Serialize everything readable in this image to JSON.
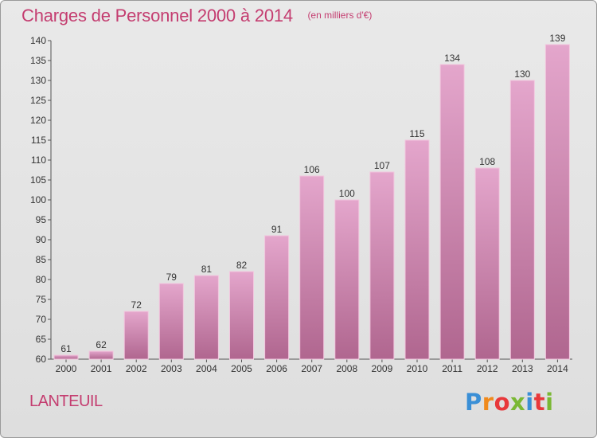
{
  "header": {
    "title": "Charges de Personnel 2000 à 2014",
    "subtitle": "(en milliers d'€)"
  },
  "footer": {
    "commune": "LANTEUIL",
    "brand": "Proxiti",
    "brand_colors": [
      "#3a8fd6",
      "#f08a1c",
      "#e8383b",
      "#7ab833",
      "#3a8fd6",
      "#e8383b",
      "#7ab833"
    ]
  },
  "colors": {
    "accent": "#c43d70",
    "bar_top": "#e4a6cc",
    "bar_bottom": "#b0668f",
    "background": "#e3e3e3"
  },
  "chart_data": {
    "type": "bar",
    "categories": [
      "2000",
      "2001",
      "2002",
      "2003",
      "2004",
      "2005",
      "2006",
      "2007",
      "2008",
      "2009",
      "2010",
      "2011",
      "2012",
      "2013",
      "2014"
    ],
    "values": [
      61,
      62,
      72,
      79,
      81,
      82,
      91,
      106,
      100,
      107,
      115,
      134,
      108,
      130,
      139
    ],
    "ylim": [
      60,
      140
    ],
    "yticks": [
      60,
      65,
      70,
      75,
      80,
      85,
      90,
      95,
      100,
      105,
      110,
      115,
      120,
      125,
      130,
      135,
      140
    ],
    "grid": false,
    "title": "Charges de Personnel 2000 à 2014",
    "xlabel": "",
    "ylabel": ""
  }
}
